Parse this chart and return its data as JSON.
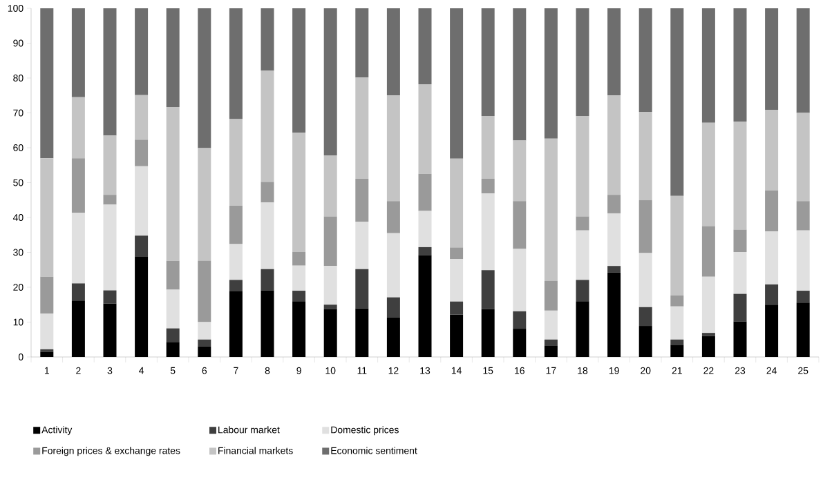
{
  "chart_data": {
    "type": "bar",
    "stacked": true,
    "legend": "bottom",
    "grid": false,
    "categories": [
      "1",
      "2",
      "3",
      "4",
      "5",
      "6",
      "7",
      "8",
      "9",
      "10",
      "11",
      "12",
      "13",
      "14",
      "15",
      "16",
      "17",
      "18",
      "19",
      "20",
      "21",
      "22",
      "23",
      "24",
      "25"
    ],
    "ylim": [
      0,
      100
    ],
    "yticks": [
      0,
      10,
      20,
      30,
      40,
      50,
      60,
      70,
      80,
      90,
      100
    ],
    "series": [
      {
        "name": "Activity",
        "color": "#000000",
        "values": [
          1.5,
          16.2,
          15.3,
          28.7,
          4.3,
          3.0,
          18.8,
          19.1,
          16.0,
          13.7,
          13.9,
          11.3,
          29.2,
          12.2,
          13.7,
          8.1,
          3.3,
          16.0,
          24.2,
          8.9,
          3.5,
          6.0,
          10.2,
          15.0,
          15.6
        ]
      },
      {
        "name": "Labour market",
        "color": "#3f3f3f",
        "values": [
          0.7,
          4.9,
          3.8,
          6.1,
          3.9,
          2.0,
          3.3,
          6.1,
          3.0,
          1.3,
          11.3,
          5.8,
          2.3,
          3.7,
          11.2,
          5.0,
          1.7,
          6.1,
          1.9,
          5.4,
          1.5,
          0.9,
          7.9,
          5.8,
          3.4
        ]
      },
      {
        "name": "Domestic prices",
        "color": "#e0e0e0",
        "values": [
          10.3,
          20.3,
          24.6,
          19.9,
          11.1,
          5.0,
          10.3,
          19.1,
          7.2,
          11.1,
          13.6,
          18.4,
          10.4,
          12.2,
          22.0,
          17.9,
          8.3,
          14.2,
          15.1,
          15.5,
          9.5,
          16.1,
          12.0,
          15.2,
          17.3
        ]
      },
      {
        "name": "Foreign prices & exchange rates",
        "color": "#9a9a9a",
        "values": [
          10.5,
          15.6,
          2.8,
          7.6,
          8.3,
          17.6,
          11.0,
          5.9,
          3.9,
          14.2,
          12.3,
          9.2,
          10.6,
          3.3,
          4.2,
          13.7,
          8.5,
          4.0,
          5.3,
          15.2,
          3.2,
          14.5,
          6.4,
          11.7,
          8.4
        ]
      },
      {
        "name": "Financial markets",
        "color": "#c4c4c4",
        "values": [
          34.0,
          17.5,
          17.0,
          12.8,
          44.1,
          32.3,
          24.8,
          31.9,
          34.2,
          17.5,
          29.1,
          30.3,
          25.7,
          25.5,
          18.0,
          17.4,
          40.8,
          28.8,
          28.5,
          25.3,
          28.5,
          29.7,
          31.0,
          23.2,
          25.3
        ]
      },
      {
        "name": "Economic sentiment",
        "color": "#6e6e6e",
        "values": [
          43.0,
          25.5,
          36.5,
          24.9,
          28.3,
          40.1,
          31.8,
          17.9,
          35.7,
          42.2,
          19.8,
          25.0,
          21.8,
          43.1,
          30.9,
          37.9,
          37.4,
          30.9,
          25.0,
          29.7,
          53.8,
          32.8,
          32.5,
          29.1,
          30.0
        ]
      }
    ]
  }
}
